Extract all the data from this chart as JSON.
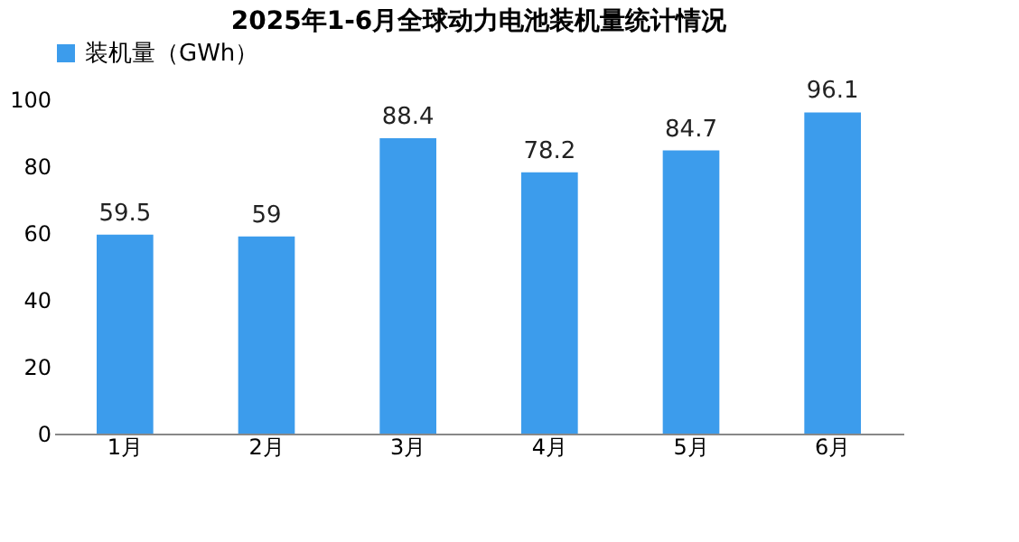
{
  "chart_data": {
    "type": "bar",
    "title": "2025年1-6月全球动力电池装机量统计情况",
    "categories": [
      "1月",
      "2月",
      "3月",
      "4月",
      "5月",
      "6月"
    ],
    "series": [
      {
        "name": "装机量（GWh）",
        "color": "#3c9cec",
        "values": [
          59.5,
          59,
          88.4,
          78.2,
          84.7,
          96.1
        ]
      }
    ],
    "ylim": [
      0,
      100
    ],
    "yticks": [
      0,
      20,
      40,
      60,
      80,
      100
    ],
    "grid": false,
    "legend": "top",
    "data_labels": true
  }
}
